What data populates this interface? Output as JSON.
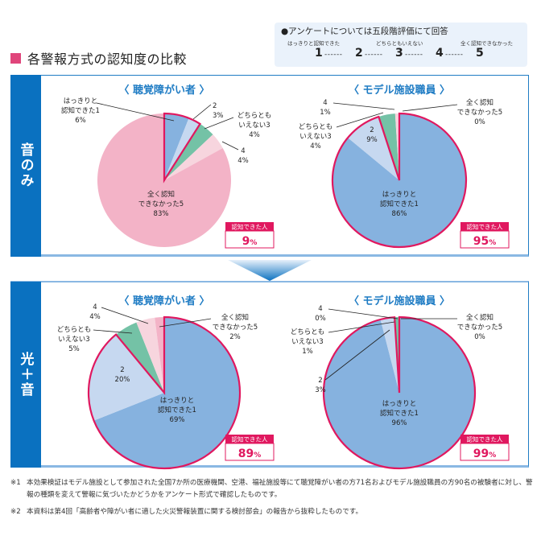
{
  "title": "各警報方式の認知度の比較",
  "legend": {
    "heading": "●アンケートについては五段階評価にて回答",
    "scale_labels": [
      "はっきりと認知できた",
      "どちらともいえない",
      "全く認知できなかった"
    ],
    "scale": [
      "1",
      "2",
      "3",
      "4",
      "5"
    ],
    "dash": "------"
  },
  "sections": [
    {
      "label": "音のみ"
    },
    {
      "label": "光＋音"
    }
  ],
  "colors": {
    "c1": "#86b2df",
    "c2": "#c6d8f0",
    "c3": "#74c2a6",
    "c4": "#f7d5de",
    "c5": "#f3b3c7",
    "highlight": "#e0185f",
    "accent_blue": "#0a71c0"
  },
  "chart_data": [
    {
      "type": "pie",
      "section": "音のみ",
      "title": "〈 聴覚障がい者 〉",
      "slices": [
        {
          "label": "はっきりと認知できた1",
          "value": 6
        },
        {
          "label": "2",
          "value": 3
        },
        {
          "label": "どちらともいえない3",
          "value": 4
        },
        {
          "label": "4",
          "value": 4
        },
        {
          "label": "全く認知できなかった5",
          "value": 83
        }
      ],
      "recognized": {
        "label": "認知できた人",
        "value": "9",
        "unit": "%"
      }
    },
    {
      "type": "pie",
      "section": "音のみ",
      "title": "〈 モデル施設職員 〉",
      "slices": [
        {
          "label": "はっきりと認知できた1",
          "value": 86
        },
        {
          "label": "2",
          "value": 9
        },
        {
          "label": "どちらともいえない3",
          "value": 4
        },
        {
          "label": "4",
          "value": 1
        },
        {
          "label": "全く認知できなかった5",
          "value": 0
        }
      ],
      "recognized": {
        "label": "認知できた人",
        "value": "95",
        "unit": "%"
      }
    },
    {
      "type": "pie",
      "section": "光＋音",
      "title": "〈 聴覚障がい者 〉",
      "slices": [
        {
          "label": "はっきりと認知できた1",
          "value": 69
        },
        {
          "label": "2",
          "value": 20
        },
        {
          "label": "どちらともいえない3",
          "value": 5
        },
        {
          "label": "4",
          "value": 4
        },
        {
          "label": "全く認知できなかった5",
          "value": 2
        }
      ],
      "recognized": {
        "label": "認知できた人",
        "value": "89",
        "unit": "%"
      }
    },
    {
      "type": "pie",
      "section": "光＋音",
      "title": "〈 モデル施設職員 〉",
      "slices": [
        {
          "label": "はっきりと認知できた1",
          "value": 96
        },
        {
          "label": "2",
          "value": 3
        },
        {
          "label": "どちらともいえない3",
          "value": 1
        },
        {
          "label": "4",
          "value": 0
        },
        {
          "label": "全く認知できなかった5",
          "value": 0
        }
      ],
      "recognized": {
        "label": "認知できた人",
        "value": "99",
        "unit": "%"
      }
    }
  ],
  "notes": [
    {
      "mark": "※1",
      "text": "本効果検証はモデル施設として参加された全国7か所の医療機関、空港、福祉施設等にて聴覚障がい者の方71名およびモデル施設職員の方90名の被験者に対し、警報の種類を変えて警報に気づいたかどうかをアンケート形式で確認したものです。"
    },
    {
      "mark": "※2",
      "text": "本資料は第4回「高齢者や障がい者に適した火災警報装置に関する検討部会」の報告から抜粋したものです。"
    }
  ]
}
